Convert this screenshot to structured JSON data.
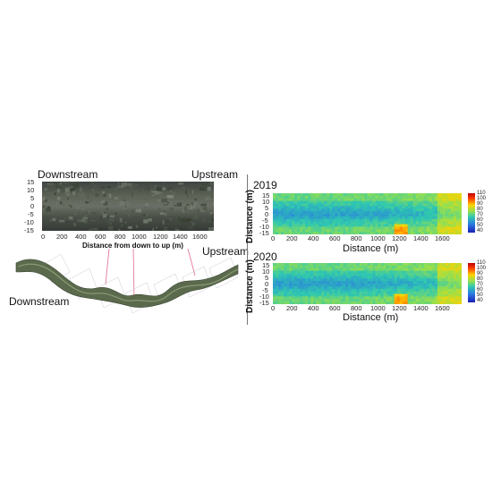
{
  "left_panel": {
    "top_labels": {
      "downstream": "Downstream",
      "upstream": "Upstream"
    },
    "y_ticks": [
      "15",
      "10",
      "5",
      "0",
      "-5",
      "-10",
      "-15"
    ],
    "x_ticks": [
      "0",
      "200",
      "400",
      "600",
      "800",
      "1000",
      "1200",
      "1400",
      "1600"
    ],
    "xlabel": "Distance from down to up (m)",
    "map_labels": {
      "downstream": "Downstream",
      "upstream": "Upstream"
    }
  },
  "chart_data": [
    {
      "type": "heatmap",
      "title": "2019",
      "xlabel": "Distance (m)",
      "ylabel": "Distance (m)",
      "x_ticks": [
        "0",
        "200",
        "400",
        "600",
        "800",
        "1000",
        "1200",
        "1400",
        "1600"
      ],
      "y_ticks": [
        "15",
        "10",
        "5",
        "0",
        "-5",
        "-10",
        "-15"
      ],
      "xlim": [
        0,
        1750
      ],
      "ylim": [
        -15,
        15
      ],
      "colorbar_ticks": [
        "110",
        "100",
        "90",
        "80",
        "70",
        "60",
        "50",
        "40"
      ],
      "colorbar_range": [
        40,
        110
      ]
    },
    {
      "type": "heatmap",
      "title": "2020",
      "xlabel": "Distance (m)",
      "ylabel": "Distance (m)",
      "x_ticks": [
        "0",
        "200",
        "400",
        "600",
        "800",
        "1000",
        "1200",
        "1400",
        "1600"
      ],
      "y_ticks": [
        "15",
        "10",
        "5",
        "0",
        "-5",
        "-10",
        "-15"
      ],
      "xlim": [
        0,
        1750
      ],
      "ylim": [
        -15,
        15
      ],
      "colorbar_ticks": [
        "110",
        "100",
        "90",
        "80",
        "70",
        "60",
        "50",
        "40"
      ],
      "colorbar_range": [
        40,
        110
      ]
    }
  ],
  "colors": {
    "low": "#1f3fd0",
    "mid": "#2fb8c8",
    "high": "#d83a1a",
    "river_photo": "#4a4f48"
  }
}
